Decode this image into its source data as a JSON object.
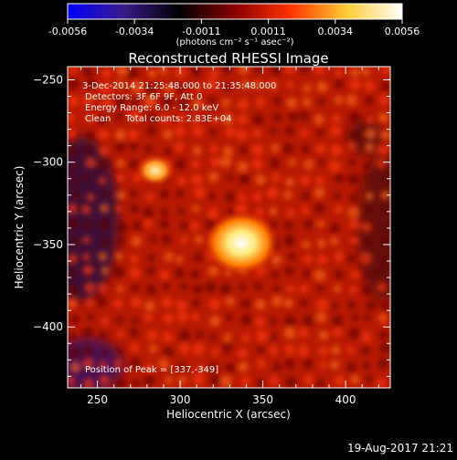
{
  "colorbar": {
    "ticks": [
      "-0.0056",
      "-0.0034",
      "-0.0011",
      "0.0011",
      "0.0034",
      "0.0056"
    ],
    "unit_label": "(photons cm⁻² s⁻¹ asec⁻²)",
    "colors": [
      "#0000ff",
      "#3a1a8a",
      "#000000",
      "#8a0000",
      "#ff3300",
      "#ffcc33",
      "#ffffff"
    ]
  },
  "chart_data": {
    "type": "heatmap",
    "title": "Reconstructed RHESSI Image",
    "xlabel": "Heliocentric X (arcsec)",
    "ylabel": "Heliocentric Y (arcsec)",
    "xlim": [
      232,
      427
    ],
    "ylim": [
      -437,
      -242
    ],
    "xticks": [
      250,
      300,
      350,
      400
    ],
    "yticks": [
      -250,
      -300,
      -350,
      -400
    ],
    "annotations": [
      "3-Dec-2014 21:25:48.000 to 21:35:48.000",
      "Detectors: 3F 6F 9F, Att 0",
      "Energy Range: 6.0 - 12.0 keV",
      "Clean     Total counts: 2.83E+04",
      "Position of Peak = [337,-349]"
    ],
    "peak": [
      337,
      -349
    ],
    "secondary_source": [
      285,
      -305
    ]
  },
  "footer": {
    "timestamp": "19-Aug-2017 21:21"
  }
}
